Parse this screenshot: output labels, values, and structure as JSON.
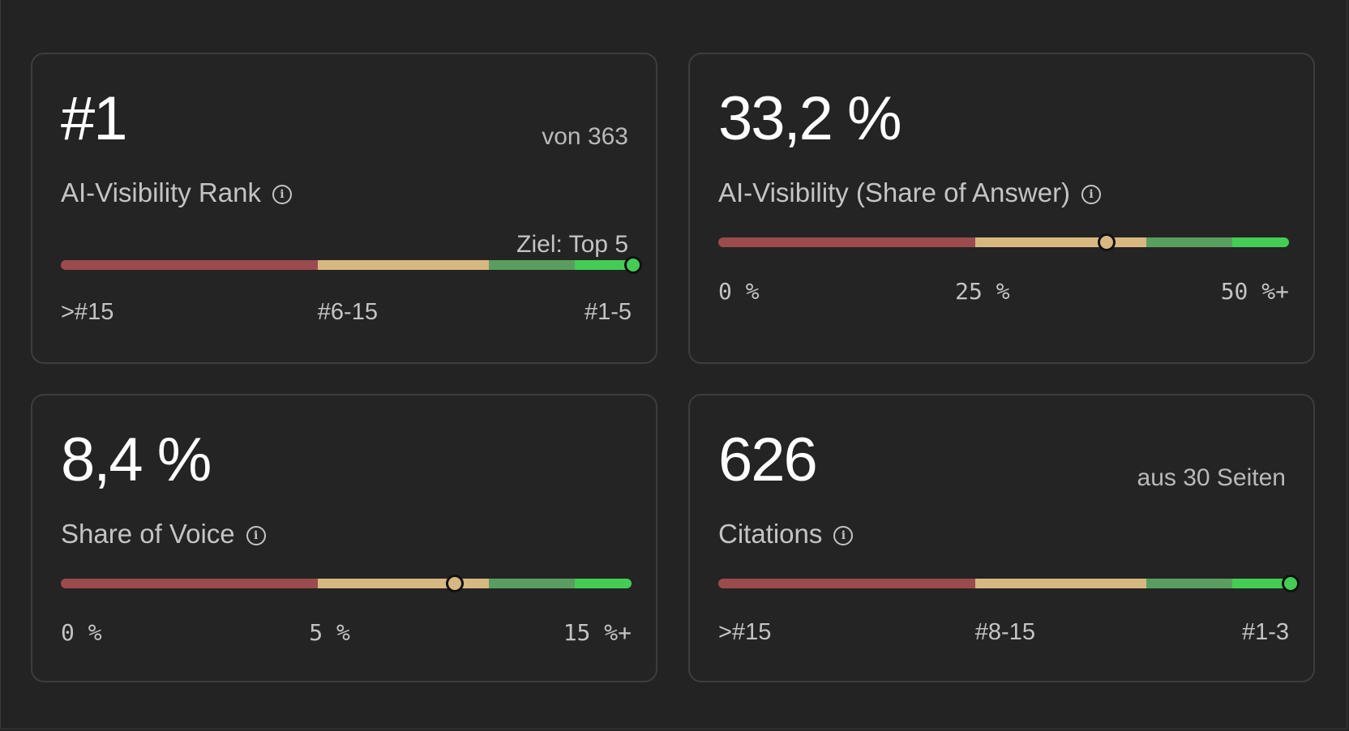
{
  "cards": [
    {
      "value": "#1",
      "aux": "von 363",
      "label": "AI-Visibility Rank",
      "target": "Ziel: Top 5",
      "ticks": [
        ">#15",
        "#6-15",
        "#1-5"
      ],
      "marker_fraction": 1.0,
      "marker_color": "green"
    },
    {
      "value": "33,2 %",
      "aux": "",
      "label": "AI-Visibility (Share of Answer)",
      "target": "",
      "ticks": [
        "0 %",
        "25 %",
        "50 %+"
      ],
      "marker_fraction": 0.68,
      "marker_color": "tan"
    },
    {
      "value": "8,4 %",
      "aux": "",
      "label": "Share of Voice",
      "target": "",
      "ticks": [
        "0 %",
        "5 %",
        "15 %+"
      ],
      "marker_fraction": 0.69,
      "marker_color": "tan"
    },
    {
      "value": "626",
      "aux": "aus 30 Seiten",
      "label": "Citations",
      "target": "",
      "ticks": [
        ">#15",
        "#8-15",
        "#1-3"
      ],
      "marker_fraction": 1.0,
      "marker_color": "green"
    }
  ],
  "colors": {
    "red": "#9b4a4e",
    "tan": "#d8b881",
    "green": "#5a9e5f",
    "bright_green": "#44cc55"
  },
  "icons": {
    "info": "info-icon"
  }
}
